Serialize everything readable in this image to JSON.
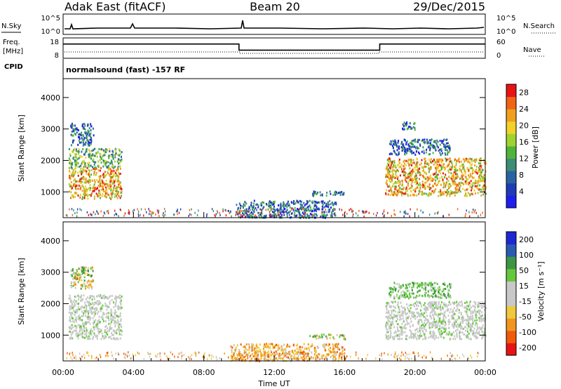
{
  "header": {
    "station": "Adak East (fitACF)",
    "beam": "Beam 20",
    "date": "29/Dec/2015"
  },
  "top_strips": {
    "nsky": {
      "label": "N.Sky",
      "tick_top": "10^5",
      "tick_bottom": "10^0"
    },
    "nsearch": {
      "label": "N.Search",
      "tick_top": "10^5",
      "tick_bottom": "10^0"
    },
    "freq": {
      "label_line1": "Freq.",
      "label_line2": "[MHz]",
      "tick_top": "18",
      "tick_bottom": "8"
    },
    "nave": {
      "label": "Nave",
      "tick_top": "60",
      "tick_bottom": "0"
    },
    "cpid": {
      "label": "CPID",
      "value": "normalsound (fast) -157 RF"
    }
  },
  "colors": {
    "power_scale": [
      "#1e1ef0",
      "#1e3cb4",
      "#2a64a0",
      "#3c8c78",
      "#50b43c",
      "#a0d232",
      "#f0d228",
      "#f0a01e",
      "#f06414",
      "#e61414"
    ],
    "velocity_scale": [
      "#e61414",
      "#f05a0a",
      "#f0961e",
      "#f0c83c",
      "#c8c8c8",
      "#c8c8c8",
      "#64c83c",
      "#3c9646",
      "#2a5ab4",
      "#1e28d2"
    ]
  },
  "chart_data": [
    {
      "type": "heatmap",
      "name": "power",
      "ylabel": "Slant Range [km]",
      "xlabel": "",
      "y_ticks": [
        "1000",
        "2000",
        "3000",
        "4000"
      ],
      "ylim": [
        180,
        4600
      ],
      "xlim": [
        0,
        24
      ],
      "colorbar_label": "Power [dB]",
      "colorbar_ticks": [
        "4",
        "8",
        "12",
        "16",
        "20",
        "24",
        "28"
      ],
      "colorbar_range": [
        0,
        30
      ],
      "regions": [
        {
          "t": [
            0.3,
            3.3
          ],
          "r": [
            800,
            1800
          ],
          "level": "strong"
        },
        {
          "t": [
            0.3,
            3.3
          ],
          "r": [
            1800,
            2400
          ],
          "level": "medium"
        },
        {
          "t": [
            0.4,
            1.7
          ],
          "r": [
            2500,
            3200
          ],
          "level": "weak"
        },
        {
          "t": [
            9.8,
            15.5
          ],
          "r": [
            200,
            750
          ],
          "level": "weak"
        },
        {
          "t": [
            14.0,
            16.0
          ],
          "r": [
            900,
            1050
          ],
          "level": "weak"
        },
        {
          "t": [
            18.3,
            24.0
          ],
          "r": [
            900,
            2100
          ],
          "level": "strong"
        },
        {
          "t": [
            18.5,
            22.0
          ],
          "r": [
            2200,
            2700
          ],
          "level": "weak"
        },
        {
          "t": [
            19.2,
            20.0
          ],
          "r": [
            3000,
            3250
          ],
          "level": "weak"
        }
      ]
    },
    {
      "type": "heatmap",
      "name": "velocity",
      "ylabel": "Slant Range [km]",
      "xlabel": "Time UT",
      "x_ticks": [
        "00:00",
        "04:00",
        "08:00",
        "12:00",
        "16:00",
        "20:00",
        "00:00"
      ],
      "y_ticks": [
        "1000",
        "2000",
        "3000",
        "4000"
      ],
      "ylim": [
        180,
        4600
      ],
      "xlim": [
        0,
        24
      ],
      "colorbar_label": "Velocity [m s⁻¹]",
      "colorbar_ticks": [
        "200",
        "100",
        "50",
        "15",
        "-15",
        "-50",
        "-100",
        "-200"
      ],
      "regions": [
        {
          "t": [
            0.3,
            3.3
          ],
          "r": [
            900,
            2300
          ],
          "level": "near-zero"
        },
        {
          "t": [
            0.4,
            1.7
          ],
          "r": [
            2500,
            3200
          ],
          "level": "mixed"
        },
        {
          "t": [
            9.5,
            16.0
          ],
          "r": [
            200,
            750
          ],
          "level": "negative"
        },
        {
          "t": [
            14.0,
            16.0
          ],
          "r": [
            900,
            1050
          ],
          "level": "mixed"
        },
        {
          "t": [
            18.3,
            24.0
          ],
          "r": [
            900,
            2100
          ],
          "level": "near-zero"
        },
        {
          "t": [
            18.5,
            22.0
          ],
          "r": [
            2200,
            2700
          ],
          "level": "positive"
        }
      ]
    },
    {
      "type": "line",
      "name": "frequency",
      "xlim": [
        0,
        24
      ],
      "ylim": [
        8,
        18
      ],
      "series": [
        {
          "x": [
            0,
            10.0,
            10.0,
            18.0,
            18.0,
            24
          ],
          "y": [
            15,
            15,
            12,
            12,
            15,
            15
          ]
        }
      ]
    }
  ]
}
